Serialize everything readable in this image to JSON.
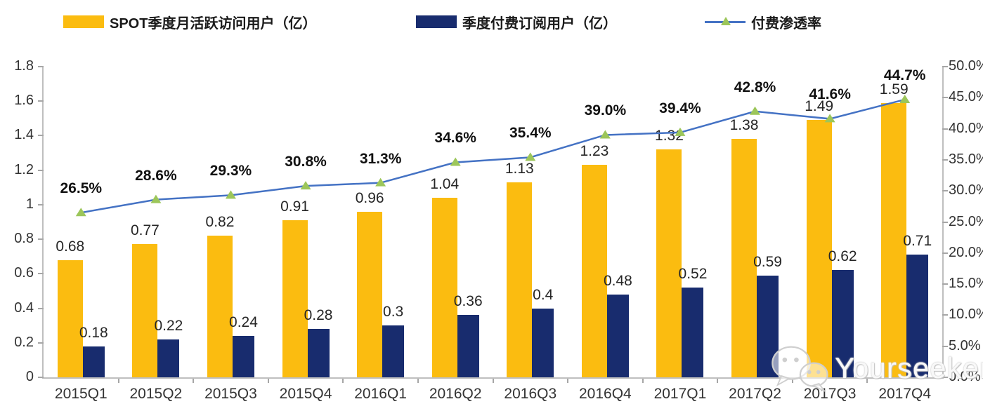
{
  "chart_data": {
    "type": "bar+line combo",
    "categories": [
      "2015Q1",
      "2015Q2",
      "2015Q3",
      "2015Q4",
      "2016Q1",
      "2016Q2",
      "2016Q3",
      "2016Q4",
      "2017Q1",
      "2017Q2",
      "2017Q3",
      "2017Q4"
    ],
    "series": [
      {
        "name": "SPOT季度月活跃访问用户（亿）",
        "type": "bar",
        "axis": "left",
        "color": "#FBBC10",
        "values": [
          0.68,
          0.77,
          0.82,
          0.91,
          0.96,
          1.04,
          1.13,
          1.23,
          1.32,
          1.38,
          1.49,
          1.59
        ],
        "labels": [
          "0.68",
          "0.77",
          "0.82",
          "0.91",
          "0.96",
          "1.04",
          "1.13",
          "1.23",
          "1.32",
          "1.38",
          "1.49",
          "1.59"
        ]
      },
      {
        "name": "季度付费订阅用户（亿）",
        "type": "bar",
        "axis": "left",
        "color": "#182C6E",
        "values": [
          0.18,
          0.22,
          0.24,
          0.28,
          0.3,
          0.36,
          0.4,
          0.48,
          0.52,
          0.59,
          0.62,
          0.71
        ],
        "labels": [
          "0.18",
          "0.22",
          "0.24",
          "0.28",
          "0.3",
          "0.36",
          "0.4",
          "0.48",
          "0.52",
          "0.59",
          "0.62",
          "0.71"
        ]
      },
      {
        "name": "付费渗透率",
        "type": "line",
        "axis": "right",
        "color": "#4472C4",
        "marker": "triangle",
        "marker_color": "#9CC65A",
        "values": [
          26.5,
          28.6,
          29.3,
          30.8,
          31.3,
          34.6,
          35.4,
          39.0,
          39.4,
          42.8,
          41.6,
          44.7
        ],
        "labels": [
          "26.5%",
          "28.6%",
          "29.3%",
          "30.8%",
          "31.3%",
          "34.6%",
          "35.4%",
          "39.0%",
          "39.4%",
          "42.8%",
          "41.6%",
          "44.7%"
        ]
      }
    ],
    "left_axis": {
      "min": 0,
      "max": 1.8,
      "ticks": [
        "0",
        "0.2",
        "0.4",
        "0.6",
        "0.8",
        "1",
        "1.2",
        "1.4",
        "1.6",
        "1.8"
      ]
    },
    "right_axis": {
      "min": 0,
      "max": 50,
      "ticks": [
        "0.0%",
        "5.0%",
        "10.0%",
        "15.0%",
        "20.0%",
        "25.0%",
        "30.0%",
        "35.0%",
        "40.0%",
        "45.0%",
        "50.0%"
      ]
    },
    "grid": false,
    "legend_position": "top",
    "axis_color": "#BFBFBF"
  },
  "watermark": {
    "text": "Yourseeker",
    "icon": "wechat-icon"
  }
}
